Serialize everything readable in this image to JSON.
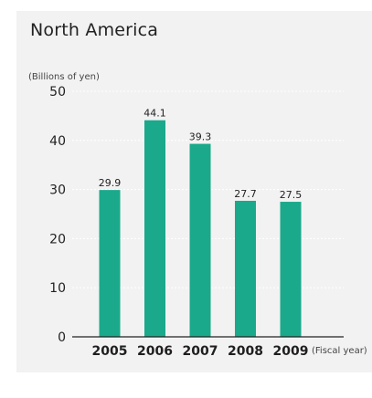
{
  "chart_data": {
    "type": "bar",
    "title": "North America",
    "ylabel": "(Billions of yen)",
    "xlabel": "(Fiscal year)",
    "categories": [
      "2005",
      "2006",
      "2007",
      "2008",
      "2009"
    ],
    "values": [
      29.9,
      44.1,
      39.3,
      27.7,
      27.5
    ],
    "value_labels": [
      "29.9",
      "44.1",
      "39.3",
      "27.7",
      "27.5"
    ],
    "y_ticks": [
      "0",
      "10",
      "20",
      "30",
      "40",
      "50"
    ],
    "ylim": [
      0,
      50
    ],
    "grid": true,
    "legend": "none",
    "colors": {
      "bar": "#1aa98b",
      "panel": "#f2f2f2",
      "gridline": "#ffffff",
      "axis": "#222222"
    }
  }
}
